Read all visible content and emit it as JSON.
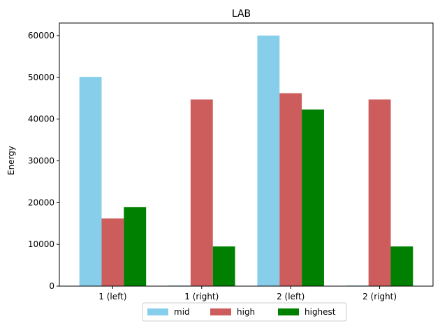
{
  "chart_data": {
    "type": "bar",
    "title": "LAB",
    "xlabel": "",
    "ylabel": "Energy",
    "categories": [
      "1 (left)",
      "1 (right)",
      "2 (left)",
      "2 (right)"
    ],
    "series": [
      {
        "name": "mid",
        "color": "#87ceeb",
        "values": [
          50100,
          150,
          60000,
          150
        ]
      },
      {
        "name": "high",
        "color": "#cd5c5c",
        "values": [
          16200,
          44700,
          46200,
          44700
        ]
      },
      {
        "name": "highest",
        "color": "#008000",
        "values": [
          18900,
          9500,
          42300,
          9500
        ]
      }
    ],
    "ylim": [
      0,
      63000
    ],
    "yticks": [
      0,
      10000,
      20000,
      30000,
      40000,
      50000,
      60000
    ],
    "grid": false,
    "legend_position": "bottom-center"
  }
}
